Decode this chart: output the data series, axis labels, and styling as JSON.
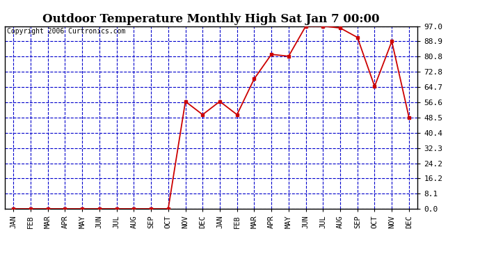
{
  "title": "Outdoor Temperature Monthly High Sat Jan 7 00:00",
  "copyright": "Copyright 2006 Curtronics.com",
  "x_labels": [
    "JAN",
    "FEB",
    "MAR",
    "APR",
    "MAY",
    "JUN",
    "JUL",
    "AUG",
    "SEP",
    "OCT",
    "NOV",
    "DEC",
    "JAN",
    "FEB",
    "MAR",
    "APR",
    "MAY",
    "JUN",
    "JUL",
    "AUG",
    "SEP",
    "OCT",
    "NOV",
    "DEC"
  ],
  "y_values": [
    0.0,
    0.0,
    0.0,
    0.0,
    0.0,
    0.0,
    0.0,
    0.0,
    0.0,
    0.0,
    57.0,
    50.0,
    57.0,
    50.0,
    69.0,
    82.0,
    81.0,
    97.0,
    97.0,
    96.0,
    91.0,
    65.0,
    88.9,
    48.5
  ],
  "y_ticks": [
    0.0,
    8.1,
    16.2,
    24.2,
    32.3,
    40.4,
    48.5,
    56.6,
    64.7,
    72.8,
    80.8,
    88.9,
    97.0
  ],
  "y_min": 0.0,
  "y_max": 97.0,
  "line_color": "#cc0000",
  "marker_color": "#cc0000",
  "bg_color": "#ffffff",
  "grid_color": "#0000cc",
  "border_color": "#000000",
  "title_fontsize": 12,
  "copyright_fontsize": 7,
  "tick_fontsize": 7.5,
  "ytick_fontsize": 8
}
